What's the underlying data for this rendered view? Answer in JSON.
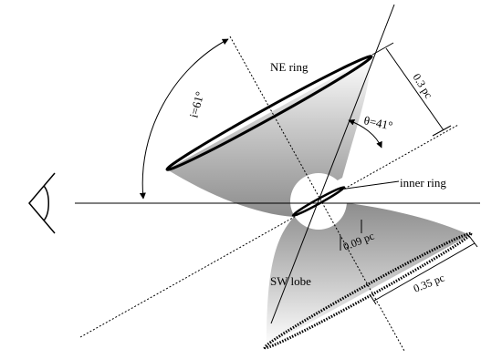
{
  "labels": {
    "ne_ring": "NE ring",
    "inner_ring": "inner ring",
    "sw_lobe": "SW lobe",
    "inclination": "i=61°",
    "half_opening": "θ=41°",
    "ne_size": "0.3 pc",
    "inner_size": "0.09 pc",
    "sw_size": "0.35 pc"
  },
  "icons": {
    "observer": "eye-icon"
  },
  "colors": {
    "ink": "#000000",
    "shade_dark": "#8c8c8c",
    "shade_light": "#ffffff"
  }
}
